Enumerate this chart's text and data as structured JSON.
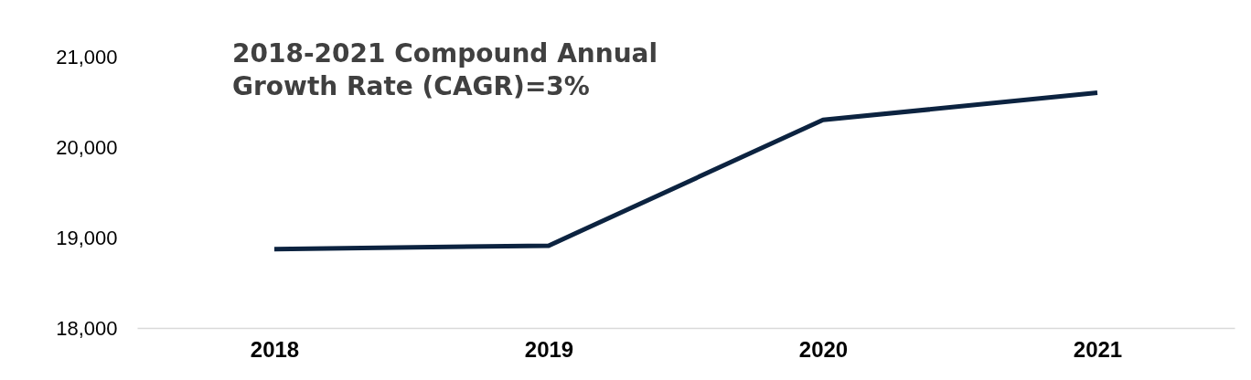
{
  "chart_data": {
    "type": "line",
    "categories": [
      "2018",
      "2019",
      "2020",
      "2021"
    ],
    "series": [
      {
        "color": "#0c2340",
        "values": [
          18870,
          18910,
          20300,
          20600
        ]
      }
    ],
    "ylim": [
      18000,
      21000
    ],
    "yticks": [
      {
        "value": 18000,
        "label": "18,000"
      },
      {
        "value": 19000,
        "label": "19,000"
      },
      {
        "value": 20000,
        "label": "20,000"
      },
      {
        "value": 21000,
        "label": "21,000"
      }
    ],
    "grid": false,
    "marker": "none",
    "line_style": "solid",
    "annotations": [
      "2018-2021 Compound Annual\nGrowth Rate (CAGR)=3%"
    ]
  }
}
